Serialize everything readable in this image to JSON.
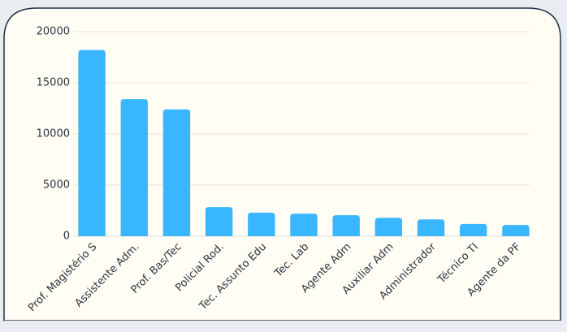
{
  "chart_data": {
    "type": "bar",
    "categories": [
      "Prof. Magistério S",
      "Assistente Adm.",
      "Prof. Bas/Tec",
      "Policial Rod.",
      "Tec. Assunto Edu",
      "Tec. Lab",
      "Agente Adm",
      "Auxiliar Adm",
      "Administrador",
      "Técnico TI",
      "Agente da PF"
    ],
    "values": [
      18200,
      13400,
      12400,
      2850,
      2300,
      2200,
      2050,
      1800,
      1650,
      1200,
      1100
    ],
    "color": "#38b6ff",
    "ylim": [
      0,
      20000
    ],
    "yticks": [
      0,
      5000,
      10000,
      15000,
      20000
    ],
    "grid": true
  }
}
